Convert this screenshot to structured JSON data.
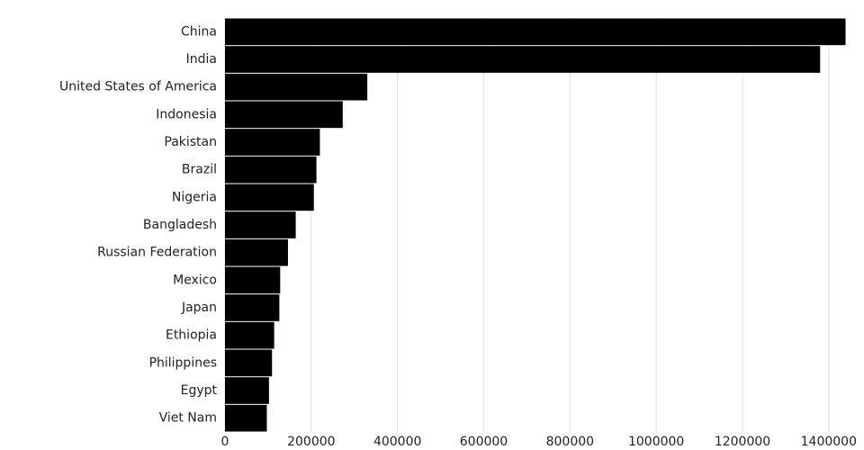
{
  "chart_data": {
    "type": "bar",
    "orientation": "horizontal",
    "categories": [
      "China",
      "India",
      "United States of America",
      "Indonesia",
      "Pakistan",
      "Brazil",
      "Nigeria",
      "Bangladesh",
      "Russian Federation",
      "Mexico",
      "Japan",
      "Ethiopia",
      "Philippines",
      "Egypt",
      "Viet Nam"
    ],
    "values": [
      1439000,
      1380000,
      330000,
      273000,
      220000,
      212000,
      206000,
      164000,
      146000,
      128000,
      126000,
      114000,
      109000,
      102000,
      97000
    ],
    "color": "#000000",
    "xlim": [
      0,
      1440000
    ],
    "xticks": [
      0,
      200000,
      400000,
      600000,
      800000,
      1000000,
      1200000,
      1400000
    ],
    "grid": true
  }
}
